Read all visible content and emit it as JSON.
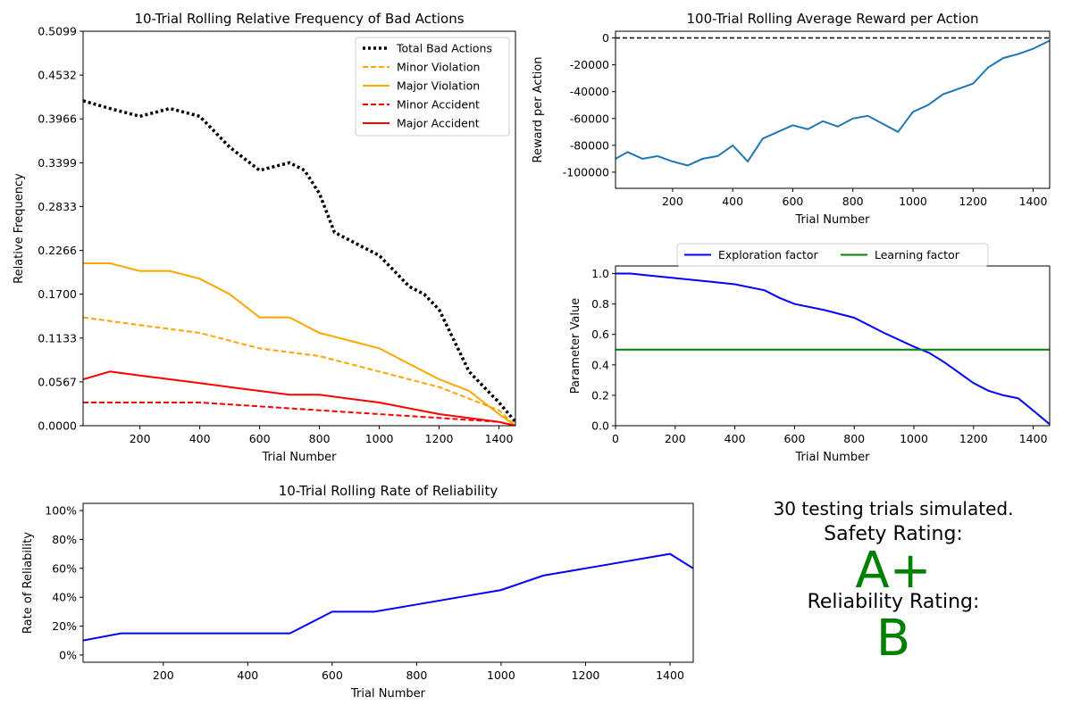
{
  "chart_data": [
    {
      "id": "bad_actions",
      "type": "line",
      "title": "10-Trial Rolling Relative Frequency of Bad Actions",
      "xlabel": "Trial Number",
      "ylabel": "Relative Frequency",
      "xlim": [
        10,
        1455
      ],
      "ylim": [
        0,
        0.5099
      ],
      "xticks": [
        200,
        400,
        600,
        800,
        1000,
        1200,
        1400
      ],
      "yticks": [
        "0.0000",
        "0.0567",
        "0.1133",
        "0.1700",
        "0.2266",
        "0.2833",
        "0.3399",
        "0.3966",
        "0.4532",
        "0.5099"
      ],
      "grid": false,
      "legend": "top-right",
      "series": [
        {
          "name": "Total Bad Actions",
          "color": "#000000",
          "style": "dotted",
          "x": [
            10,
            100,
            200,
            300,
            400,
            500,
            600,
            700,
            750,
            800,
            850,
            900,
            1000,
            1100,
            1150,
            1200,
            1250,
            1300,
            1350,
            1400,
            1455
          ],
          "y": [
            0.42,
            0.41,
            0.4,
            0.41,
            0.4,
            0.36,
            0.33,
            0.34,
            0.33,
            0.3,
            0.25,
            0.24,
            0.22,
            0.18,
            0.17,
            0.15,
            0.11,
            0.07,
            0.05,
            0.03,
            0.005
          ]
        },
        {
          "name": "Minor Violation",
          "color": "#ffa500",
          "style": "dashed",
          "x": [
            10,
            200,
            400,
            600,
            800,
            1000,
            1100,
            1200,
            1300,
            1400,
            1455
          ],
          "y": [
            0.14,
            0.13,
            0.12,
            0.1,
            0.09,
            0.07,
            0.06,
            0.05,
            0.035,
            0.02,
            0.0
          ]
        },
        {
          "name": "Major Violation",
          "color": "#ffa500",
          "style": "solid",
          "x": [
            10,
            100,
            200,
            300,
            400,
            500,
            600,
            700,
            800,
            900,
            1000,
            1100,
            1200,
            1300,
            1350,
            1400,
            1455
          ],
          "y": [
            0.21,
            0.21,
            0.2,
            0.2,
            0.19,
            0.17,
            0.14,
            0.14,
            0.12,
            0.11,
            0.1,
            0.08,
            0.06,
            0.045,
            0.03,
            0.015,
            0.0
          ]
        },
        {
          "name": "Minor Accident",
          "color": "#ff0000",
          "style": "dashed",
          "x": [
            10,
            200,
            400,
            600,
            800,
            1000,
            1200,
            1400,
            1455
          ],
          "y": [
            0.03,
            0.03,
            0.03,
            0.025,
            0.02,
            0.015,
            0.01,
            0.005,
            0.0
          ]
        },
        {
          "name": "Major Accident",
          "color": "#ff0000",
          "style": "solid",
          "x": [
            10,
            100,
            200,
            300,
            400,
            500,
            600,
            700,
            800,
            900,
            1000,
            1200,
            1400,
            1455
          ],
          "y": [
            0.06,
            0.07,
            0.065,
            0.06,
            0.055,
            0.05,
            0.045,
            0.04,
            0.04,
            0.035,
            0.03,
            0.015,
            0.005,
            0.0
          ]
        }
      ]
    },
    {
      "id": "reward",
      "type": "line",
      "title": "100-Trial Rolling Average Reward per Action",
      "xlabel": "Trial Number",
      "ylabel": "Reward per Action",
      "xlim": [
        10,
        1455
      ],
      "ylim": [
        -112000,
        5000
      ],
      "xticks": [
        200,
        400,
        600,
        800,
        1000,
        1200,
        1400
      ],
      "yticks": [
        0,
        -20000,
        -40000,
        -60000,
        -80000,
        -100000
      ],
      "reference_line": 0,
      "grid": false,
      "series": [
        {
          "name": "",
          "color": "#1f77b4",
          "style": "solid",
          "x": [
            10,
            50,
            100,
            150,
            200,
            250,
            300,
            350,
            400,
            450,
            500,
            550,
            600,
            650,
            700,
            750,
            800,
            850,
            900,
            950,
            1000,
            1050,
            1100,
            1150,
            1200,
            1250,
            1300,
            1350,
            1400,
            1455
          ],
          "y": [
            -90000,
            -85000,
            -90000,
            -88000,
            -92000,
            -95000,
            -90000,
            -88000,
            -80000,
            -92000,
            -75000,
            -70000,
            -65000,
            -68000,
            -62000,
            -66000,
            -60000,
            -58000,
            -64000,
            -70000,
            -55000,
            -50000,
            -42000,
            -38000,
            -34000,
            -22000,
            -15000,
            -12000,
            -8000,
            -2000
          ]
        }
      ]
    },
    {
      "id": "parameters",
      "type": "line",
      "title": "",
      "xlabel": "Trial Number",
      "ylabel": "Parameter Value",
      "xlim": [
        0,
        1455
      ],
      "ylim": [
        0,
        1.05
      ],
      "xticks": [
        0,
        200,
        400,
        600,
        800,
        1000,
        1200,
        1400
      ],
      "yticks": [
        "0.0",
        "0.2",
        "0.4",
        "0.6",
        "0.8",
        "1.0"
      ],
      "grid": false,
      "legend": "top-center",
      "series": [
        {
          "name": "Exploration factor",
          "color": "#0000ff",
          "style": "solid",
          "x": [
            0,
            50,
            100,
            200,
            300,
            400,
            500,
            550,
            600,
            700,
            800,
            900,
            1000,
            1050,
            1100,
            1150,
            1200,
            1250,
            1300,
            1350,
            1400,
            1455
          ],
          "y": [
            1.0,
            1.0,
            0.99,
            0.97,
            0.95,
            0.93,
            0.89,
            0.84,
            0.8,
            0.76,
            0.71,
            0.61,
            0.52,
            0.48,
            0.42,
            0.35,
            0.28,
            0.23,
            0.2,
            0.18,
            0.1,
            0.01
          ]
        },
        {
          "name": "Learning factor",
          "color": "#008000",
          "style": "solid",
          "x": [
            0,
            1455
          ],
          "y": [
            0.5,
            0.5
          ]
        }
      ]
    },
    {
      "id": "reliability",
      "type": "line",
      "title": "10-Trial Rolling Rate of Reliability",
      "xlabel": "Trial Number",
      "ylabel": "Rate of Reliability",
      "xlim": [
        10,
        1455
      ],
      "ylim": [
        -0.05,
        1.05
      ],
      "xticks": [
        200,
        400,
        600,
        800,
        1000,
        1200,
        1400
      ],
      "yticks": [
        "0%",
        "20%",
        "40%",
        "60%",
        "80%",
        "100%"
      ],
      "grid": false,
      "series": [
        {
          "name": "",
          "color": "#0000ff",
          "style": "solid",
          "x": [
            10,
            100,
            200,
            300,
            400,
            500,
            600,
            700,
            800,
            900,
            1000,
            1100,
            1200,
            1300,
            1400,
            1455
          ],
          "y": [
            0.1,
            0.15,
            0.15,
            0.15,
            0.15,
            0.15,
            0.3,
            0.3,
            0.35,
            0.4,
            0.45,
            0.55,
            0.6,
            0.65,
            0.7,
            0.6
          ]
        }
      ]
    }
  ],
  "summary": {
    "trials_text": "30 testing trials simulated.",
    "safety_label": "Safety Rating:",
    "safety_grade": "A+",
    "reliability_label": "Reliability Rating:",
    "reliability_grade": "B",
    "grade_color": "#008000"
  }
}
